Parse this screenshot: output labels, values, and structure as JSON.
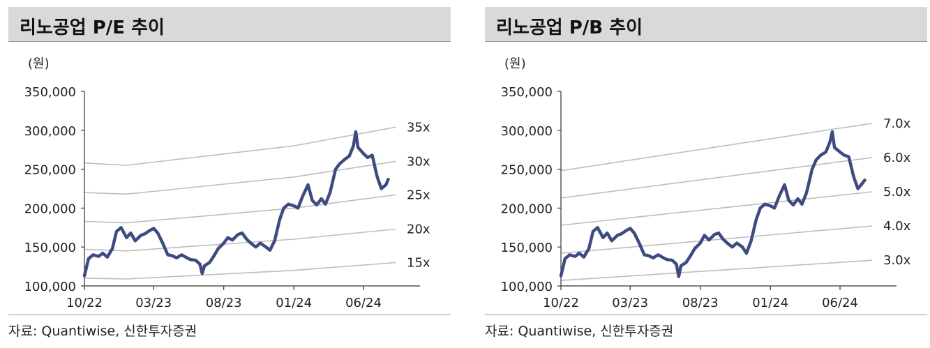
{
  "charts": [
    {
      "title": "리노공업 P/E 추이",
      "unit": "(원)",
      "source": "자료: Quantiwise, 신한투자증권",
      "chart_data": {
        "type": "line",
        "title": "리노공업 P/E 추이",
        "ylabel": "(원)",
        "ylim": [
          100000,
          350000
        ],
        "yticks": [
          "100,000",
          "150,000",
          "200,000",
          "250,000",
          "300,000",
          "350,000"
        ],
        "x_range": [
          "2022-10-01",
          "2024-08-10"
        ],
        "xticks": [
          {
            "label": "10/22",
            "date": "2022-10-01"
          },
          {
            "label": "03/23",
            "date": "2023-03-01"
          },
          {
            "label": "08/23",
            "date": "2023-08-01"
          },
          {
            "label": "01/24",
            "date": "2024-01-01"
          },
          {
            "label": "06/24",
            "date": "2024-06-01"
          }
        ],
        "series": [
          {
            "kind": "price",
            "color": "#3d4b82",
            "points": [
              [
                "2022-10-01",
                113000
              ],
              [
                "2022-10-10",
                135000
              ],
              [
                "2022-10-20",
                140000
              ],
              [
                "2022-11-01",
                138000
              ],
              [
                "2022-11-10",
                142000
              ],
              [
                "2022-11-20",
                137000
              ],
              [
                "2022-12-01",
                148000
              ],
              [
                "2022-12-10",
                170000
              ],
              [
                "2022-12-20",
                175000
              ],
              [
                "2023-01-01",
                162000
              ],
              [
                "2023-01-10",
                168000
              ],
              [
                "2023-01-20",
                158000
              ],
              [
                "2023-02-01",
                165000
              ],
              [
                "2023-02-10",
                167000
              ],
              [
                "2023-02-20",
                171000
              ],
              [
                "2023-03-01",
                174000
              ],
              [
                "2023-03-10",
                168000
              ],
              [
                "2023-03-20",
                156000
              ],
              [
                "2023-04-01",
                140000
              ],
              [
                "2023-04-10",
                139000
              ],
              [
                "2023-04-20",
                136000
              ],
              [
                "2023-05-01",
                140000
              ],
              [
                "2023-05-10",
                137000
              ],
              [
                "2023-05-20",
                134000
              ],
              [
                "2023-06-01",
                133000
              ],
              [
                "2023-06-10",
                128000
              ],
              [
                "2023-06-15",
                116000
              ],
              [
                "2023-06-20",
                126000
              ],
              [
                "2023-07-01",
                130000
              ],
              [
                "2023-07-10",
                138000
              ],
              [
                "2023-07-20",
                148000
              ],
              [
                "2023-08-01",
                155000
              ],
              [
                "2023-08-10",
                162000
              ],
              [
                "2023-08-20",
                159000
              ],
              [
                "2023-09-01",
                166000
              ],
              [
                "2023-09-10",
                168000
              ],
              [
                "2023-09-20",
                160000
              ],
              [
                "2023-10-01",
                154000
              ],
              [
                "2023-10-10",
                150000
              ],
              [
                "2023-10-20",
                155000
              ],
              [
                "2023-11-01",
                150000
              ],
              [
                "2023-11-10",
                146000
              ],
              [
                "2023-11-20",
                158000
              ],
              [
                "2023-12-01",
                185000
              ],
              [
                "2023-12-10",
                200000
              ],
              [
                "2023-12-20",
                205000
              ],
              [
                "2024-01-01",
                203000
              ],
              [
                "2024-01-10",
                200000
              ],
              [
                "2024-01-20",
                215000
              ],
              [
                "2024-02-01",
                230000
              ],
              [
                "2024-02-10",
                210000
              ],
              [
                "2024-02-20",
                204000
              ],
              [
                "2024-03-01",
                212000
              ],
              [
                "2024-03-10",
                205000
              ],
              [
                "2024-03-20",
                220000
              ],
              [
                "2024-04-01",
                250000
              ],
              [
                "2024-04-10",
                257000
              ],
              [
                "2024-04-20",
                262000
              ],
              [
                "2024-05-01",
                267000
              ],
              [
                "2024-05-10",
                280000
              ],
              [
                "2024-05-15",
                298000
              ],
              [
                "2024-05-20",
                278000
              ],
              [
                "2024-06-01",
                270000
              ],
              [
                "2024-06-10",
                265000
              ],
              [
                "2024-06-20",
                268000
              ],
              [
                "2024-07-01",
                240000
              ],
              [
                "2024-07-10",
                225000
              ],
              [
                "2024-07-20",
                230000
              ],
              [
                "2024-07-25",
                237000
              ]
            ]
          },
          {
            "kind": "band",
            "name": "35x",
            "color": "#bdbdbd",
            "points": [
              [
                "2022-10-01",
                258000
              ],
              [
                "2023-01-01",
                255000
              ],
              [
                "2024-01-01",
                280000
              ],
              [
                "2024-08-10",
                304000
              ]
            ]
          },
          {
            "kind": "band",
            "name": "30x",
            "color": "#bdbdbd",
            "points": [
              [
                "2022-10-01",
                220000
              ],
              [
                "2023-01-01",
                218000
              ],
              [
                "2024-01-01",
                240000
              ],
              [
                "2024-08-10",
                260000
              ]
            ]
          },
          {
            "kind": "band",
            "name": "25x",
            "color": "#bdbdbd",
            "points": [
              [
                "2022-10-01",
                183000
              ],
              [
                "2023-01-01",
                181000
              ],
              [
                "2024-01-01",
                200000
              ],
              [
                "2024-08-10",
                217000
              ]
            ]
          },
          {
            "kind": "band",
            "name": "20x",
            "color": "#bdbdbd",
            "points": [
              [
                "2022-10-01",
                147000
              ],
              [
                "2023-01-01",
                145000
              ],
              [
                "2024-01-01",
                160000
              ],
              [
                "2024-08-10",
                173000
              ]
            ]
          },
          {
            "kind": "band",
            "name": "15x",
            "color": "#bdbdbd",
            "points": [
              [
                "2022-10-01",
                110000
              ],
              [
                "2023-01-01",
                109000
              ],
              [
                "2024-01-01",
                120000
              ],
              [
                "2024-08-10",
                130000
              ]
            ]
          }
        ]
      }
    },
    {
      "title": "리노공업 P/B 추이",
      "unit": "(원)",
      "source": "자료: Quantiwise, 신한투자증권",
      "chart_data": {
        "type": "line",
        "title": "리노공업 P/B 추이",
        "ylabel": "(원)",
        "ylim": [
          100000,
          350000
        ],
        "yticks": [
          "100,000",
          "150,000",
          "200,000",
          "250,000",
          "300,000",
          "350,000"
        ],
        "x_range": [
          "2022-10-01",
          "2024-08-10"
        ],
        "xticks": [
          {
            "label": "10/22",
            "date": "2022-10-01"
          },
          {
            "label": "03/23",
            "date": "2023-03-01"
          },
          {
            "label": "08/23",
            "date": "2023-08-01"
          },
          {
            "label": "01/24",
            "date": "2024-01-01"
          },
          {
            "label": "06/24",
            "date": "2024-06-01"
          }
        ],
        "series": [
          {
            "kind": "price",
            "color": "#3d4b82",
            "points": [
              [
                "2022-10-01",
                113000
              ],
              [
                "2022-10-10",
                135000
              ],
              [
                "2022-10-20",
                140000
              ],
              [
                "2022-11-01",
                138000
              ],
              [
                "2022-11-10",
                142000
              ],
              [
                "2022-11-20",
                137000
              ],
              [
                "2022-12-01",
                148000
              ],
              [
                "2022-12-10",
                170000
              ],
              [
                "2022-12-20",
                175000
              ],
              [
                "2023-01-01",
                162000
              ],
              [
                "2023-01-10",
                168000
              ],
              [
                "2023-01-20",
                158000
              ],
              [
                "2023-02-01",
                165000
              ],
              [
                "2023-02-10",
                167000
              ],
              [
                "2023-02-20",
                171000
              ],
              [
                "2023-03-01",
                174000
              ],
              [
                "2023-03-10",
                168000
              ],
              [
                "2023-03-20",
                156000
              ],
              [
                "2023-04-01",
                140000
              ],
              [
                "2023-04-10",
                139000
              ],
              [
                "2023-04-20",
                136000
              ],
              [
                "2023-05-01",
                140000
              ],
              [
                "2023-05-10",
                137000
              ],
              [
                "2023-05-20",
                134000
              ],
              [
                "2023-06-01",
                133000
              ],
              [
                "2023-06-10",
                128000
              ],
              [
                "2023-06-15",
                112000
              ],
              [
                "2023-06-20",
                126000
              ],
              [
                "2023-07-01",
                130000
              ],
              [
                "2023-07-10",
                138000
              ],
              [
                "2023-07-20",
                148000
              ],
              [
                "2023-08-01",
                155000
              ],
              [
                "2023-08-10",
                165000
              ],
              [
                "2023-08-20",
                159000
              ],
              [
                "2023-09-01",
                166000
              ],
              [
                "2023-09-10",
                168000
              ],
              [
                "2023-09-20",
                160000
              ],
              [
                "2023-10-01",
                154000
              ],
              [
                "2023-10-10",
                150000
              ],
              [
                "2023-10-20",
                155000
              ],
              [
                "2023-11-01",
                150000
              ],
              [
                "2023-11-10",
                142000
              ],
              [
                "2023-11-20",
                158000
              ],
              [
                "2023-12-01",
                185000
              ],
              [
                "2023-12-10",
                200000
              ],
              [
                "2023-12-20",
                205000
              ],
              [
                "2024-01-01",
                203000
              ],
              [
                "2024-01-10",
                200000
              ],
              [
                "2024-01-20",
                215000
              ],
              [
                "2024-02-01",
                230000
              ],
              [
                "2024-02-10",
                210000
              ],
              [
                "2024-02-20",
                204000
              ],
              [
                "2024-03-01",
                212000
              ],
              [
                "2024-03-10",
                205000
              ],
              [
                "2024-03-20",
                220000
              ],
              [
                "2024-04-01",
                250000
              ],
              [
                "2024-04-10",
                262000
              ],
              [
                "2024-04-20",
                268000
              ],
              [
                "2024-05-01",
                272000
              ],
              [
                "2024-05-10",
                285000
              ],
              [
                "2024-05-15",
                298000
              ],
              [
                "2024-05-20",
                278000
              ],
              [
                "2024-06-01",
                272000
              ],
              [
                "2024-06-10",
                268000
              ],
              [
                "2024-06-20",
                266000
              ],
              [
                "2024-07-01",
                240000
              ],
              [
                "2024-07-10",
                225000
              ],
              [
                "2024-07-20",
                232000
              ],
              [
                "2024-07-25",
                236000
              ]
            ]
          },
          {
            "kind": "band",
            "name": "7.0x",
            "color": "#bdbdbd",
            "points": [
              [
                "2022-10-01",
                248000
              ],
              [
                "2024-08-10",
                309000
              ]
            ]
          },
          {
            "kind": "band",
            "name": "6.0x",
            "color": "#bdbdbd",
            "points": [
              [
                "2022-10-01",
                213000
              ],
              [
                "2024-08-10",
                265000
              ]
            ]
          },
          {
            "kind": "band",
            "name": "5.0x",
            "color": "#bdbdbd",
            "points": [
              [
                "2022-10-01",
                178000
              ],
              [
                "2024-08-10",
                221000
              ]
            ]
          },
          {
            "kind": "band",
            "name": "4.0x",
            "color": "#bdbdbd",
            "points": [
              [
                "2022-10-01",
                142000
              ],
              [
                "2024-08-10",
                177000
              ]
            ]
          },
          {
            "kind": "band",
            "name": "3.0x",
            "color": "#bdbdbd",
            "points": [
              [
                "2022-10-01",
                107000
              ],
              [
                "2024-08-10",
                133000
              ]
            ]
          }
        ]
      }
    }
  ]
}
